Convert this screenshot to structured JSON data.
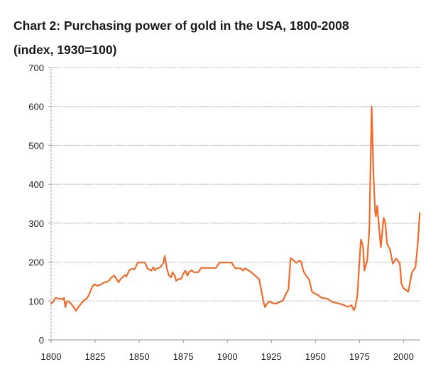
{
  "chart_data": {
    "type": "line",
    "title": "Chart 2: Purchasing power of gold in the USA, 1800-2008",
    "subtitle": "(index, 1930=100)",
    "xlabel": "",
    "ylabel": "",
    "xlim": [
      1800,
      2009.5
    ],
    "ylim": [
      0,
      700
    ],
    "x_ticks": [
      1800,
      1825,
      1850,
      1875,
      1900,
      1925,
      1950,
      1975,
      2000
    ],
    "x_tick_labels": [
      "1800",
      "1825",
      "1850",
      "1875",
      "1900",
      "1925",
      "1950",
      "1975",
      "2000"
    ],
    "y_ticks": [
      0,
      100,
      200,
      300,
      400,
      500,
      600,
      700
    ],
    "y_tick_labels": [
      "0",
      "100",
      "200",
      "300",
      "400",
      "500",
      "600",
      "700"
    ],
    "grid": "horizontal dotted",
    "legend": "none",
    "line_color": "#F26B2A",
    "grid_color": "#b8b8b8",
    "series": [
      {
        "name": "Purchasing power of gold",
        "points": [
          [
            1800,
            93
          ],
          [
            1801,
            97
          ],
          [
            1802.4,
            108
          ],
          [
            1804,
            106
          ],
          [
            1805.6,
            106
          ],
          [
            1806.9,
            104
          ],
          [
            1807.3,
            108
          ],
          [
            1808.1,
            84
          ],
          [
            1808.9,
            99
          ],
          [
            1810,
            99
          ],
          [
            1811.3,
            93
          ],
          [
            1812.9,
            84
          ],
          [
            1814.1,
            75
          ],
          [
            1815.3,
            84
          ],
          [
            1817,
            93
          ],
          [
            1818.5,
            101
          ],
          [
            1820.2,
            106
          ],
          [
            1821.4,
            115
          ],
          [
            1823.4,
            137
          ],
          [
            1824.6,
            143
          ],
          [
            1826.2,
            139
          ],
          [
            1828.6,
            143
          ],
          [
            1830.2,
            148
          ],
          [
            1832.3,
            150
          ],
          [
            1834.3,
            161
          ],
          [
            1835.9,
            165
          ],
          [
            1837.1,
            156
          ],
          [
            1838.3,
            148
          ],
          [
            1839.5,
            157
          ],
          [
            1840.7,
            161
          ],
          [
            1841.9,
            167
          ],
          [
            1842.7,
            163
          ],
          [
            1844.4,
            179
          ],
          [
            1846,
            183
          ],
          [
            1847.2,
            181
          ],
          [
            1848,
            187
          ],
          [
            1849.2,
            199
          ],
          [
            1853.2,
            199
          ],
          [
            1854.8,
            183
          ],
          [
            1856.9,
            178
          ],
          [
            1858,
            187
          ],
          [
            1858.9,
            179
          ],
          [
            1859.7,
            183
          ],
          [
            1862.1,
            187
          ],
          [
            1863.7,
            198
          ],
          [
            1864.5,
            216
          ],
          [
            1865.7,
            183
          ],
          [
            1866.9,
            165
          ],
          [
            1868.1,
            161
          ],
          [
            1868.9,
            174
          ],
          [
            1870.2,
            165
          ],
          [
            1871,
            152
          ],
          [
            1872.2,
            156
          ],
          [
            1873.8,
            157
          ],
          [
            1875,
            170
          ],
          [
            1876.2,
            178
          ],
          [
            1877.4,
            165
          ],
          [
            1878.2,
            174
          ],
          [
            1879.8,
            179
          ],
          [
            1881,
            174
          ],
          [
            1883.5,
            174
          ],
          [
            1885.1,
            185
          ],
          [
            1893.5,
            185
          ],
          [
            1895.6,
            199
          ],
          [
            1902.4,
            199
          ],
          [
            1904.4,
            184
          ],
          [
            1907.7,
            184
          ],
          [
            1908.9,
            178
          ],
          [
            1910.1,
            184
          ],
          [
            1913.3,
            175
          ],
          [
            1916.1,
            164
          ],
          [
            1918.1,
            156
          ],
          [
            1919.4,
            124
          ],
          [
            1920.6,
            97
          ],
          [
            1921.4,
            84
          ],
          [
            1922.2,
            91
          ],
          [
            1923.8,
            99
          ],
          [
            1925.4,
            95
          ],
          [
            1927.4,
            93
          ],
          [
            1929.4,
            97
          ],
          [
            1931.5,
            101
          ],
          [
            1932.7,
            113
          ],
          [
            1934.7,
            130
          ],
          [
            1935.9,
            210
          ],
          [
            1937.5,
            205
          ],
          [
            1939.1,
            198
          ],
          [
            1940.7,
            203
          ],
          [
            1941.9,
            201
          ],
          [
            1943.1,
            178
          ],
          [
            1944.8,
            164
          ],
          [
            1946.4,
            156
          ],
          [
            1948,
            124
          ],
          [
            1950,
            118
          ],
          [
            1951.2,
            116
          ],
          [
            1953.2,
            109
          ],
          [
            1955.2,
            107
          ],
          [
            1957.3,
            105
          ],
          [
            1959.3,
            98
          ],
          [
            1965.3,
            91
          ],
          [
            1968.5,
            85
          ],
          [
            1970.5,
            89
          ],
          [
            1971.8,
            76
          ],
          [
            1972.6,
            84
          ],
          [
            1973.8,
            115
          ],
          [
            1975,
            205
          ],
          [
            1975.8,
            258
          ],
          [
            1977,
            242
          ],
          [
            1977.8,
            178
          ],
          [
            1979.4,
            205
          ],
          [
            1980.6,
            287
          ],
          [
            1981.9,
            600
          ],
          [
            1983,
            418
          ],
          [
            1983.9,
            327
          ],
          [
            1984.3,
            318
          ],
          [
            1985.1,
            345
          ],
          [
            1985.9,
            300
          ],
          [
            1987.1,
            238
          ],
          [
            1988.7,
            313
          ],
          [
            1989.5,
            305
          ],
          [
            1990.7,
            247
          ],
          [
            1992.3,
            233
          ],
          [
            1993.9,
            196
          ],
          [
            1995.9,
            209
          ],
          [
            1997.9,
            196
          ],
          [
            1998.8,
            145
          ],
          [
            1999.9,
            133
          ],
          [
            2002.7,
            124
          ],
          [
            2004.7,
            173
          ],
          [
            2006.8,
            187
          ],
          [
            2008,
            245
          ],
          [
            2009.2,
            326
          ]
        ]
      }
    ]
  }
}
